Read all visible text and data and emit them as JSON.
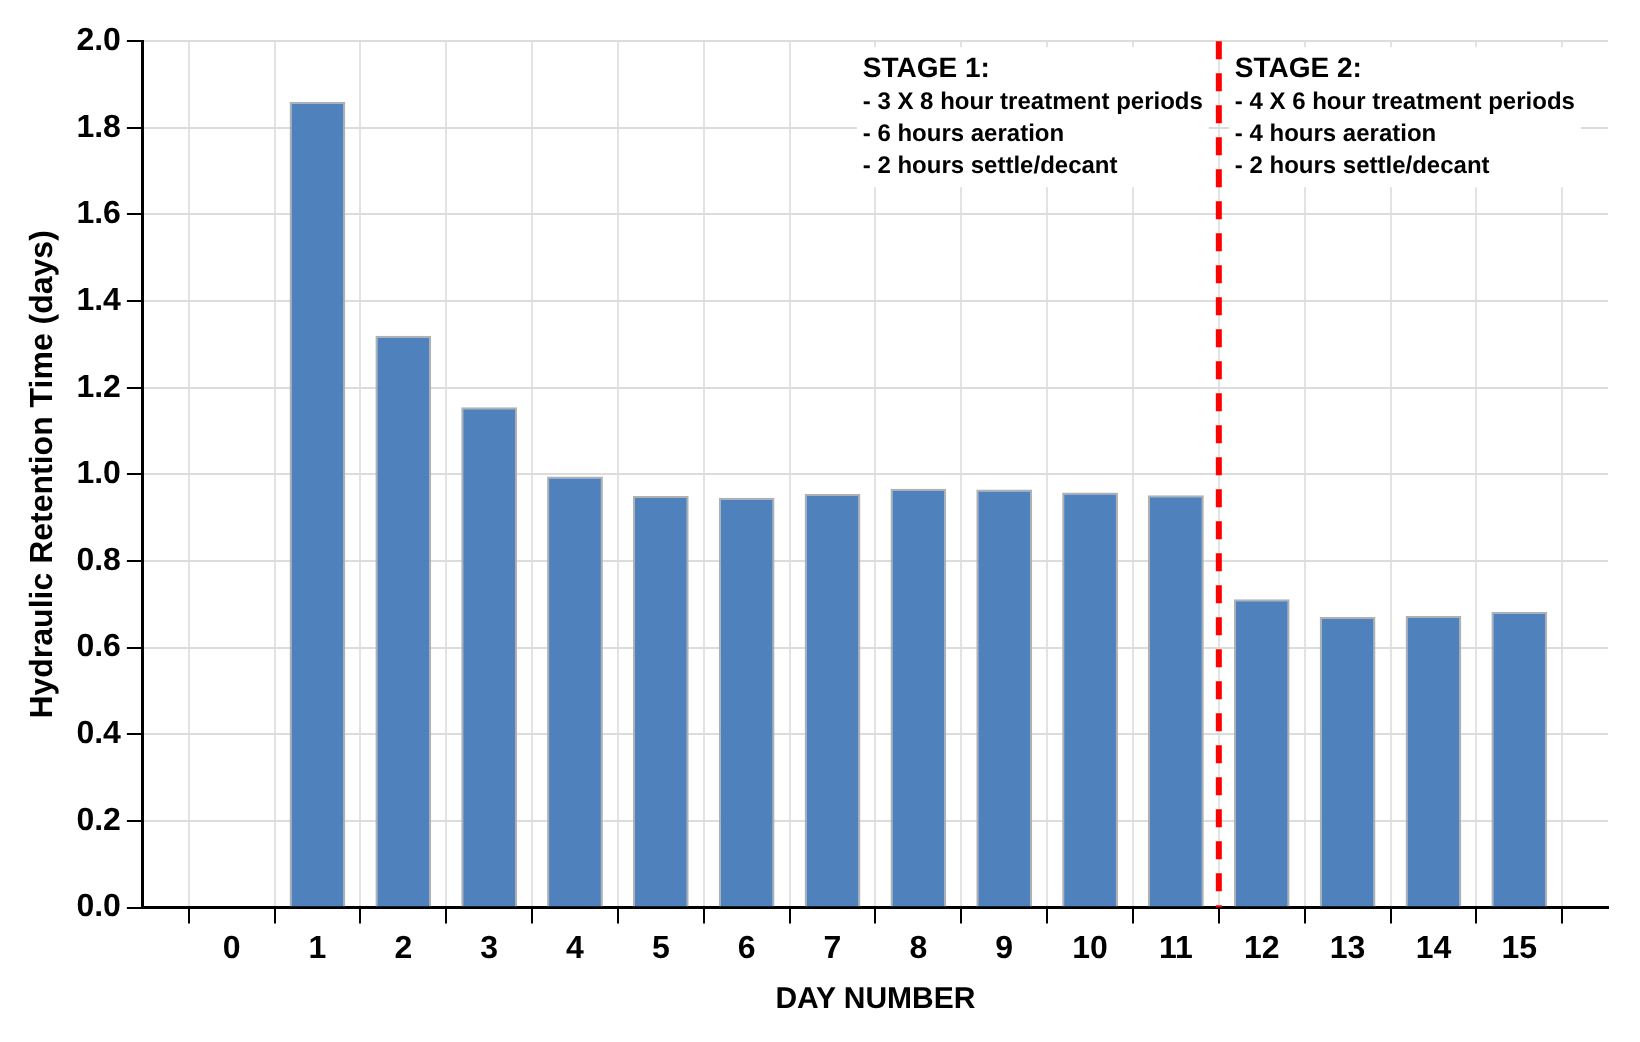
{
  "chart_data": {
    "type": "bar",
    "xlabel": "DAY NUMBER",
    "ylabel": "Hydraulic Retention Time (days)",
    "x": [
      1,
      2,
      3,
      4,
      5,
      6,
      7,
      8,
      9,
      10,
      11,
      12,
      13,
      14,
      15
    ],
    "values": [
      1.86,
      1.32,
      1.155,
      0.995,
      0.95,
      0.946,
      0.955,
      0.967,
      0.965,
      0.958,
      0.952,
      0.712,
      0.671,
      0.673,
      0.683
    ],
    "color": "#4f81bd",
    "xlim": [
      -0.5,
      15.5
    ],
    "xticks": [
      0,
      1,
      2,
      3,
      4,
      5,
      6,
      7,
      8,
      9,
      10,
      11,
      12,
      13,
      14,
      15
    ],
    "ylim": [
      0,
      2
    ],
    "yticks": [
      {
        "value": 0,
        "label": "0.0"
      },
      0.2,
      0.4,
      0.6,
      0.8,
      {
        "value": 1,
        "label": "1.0"
      },
      1.2,
      1.4,
      1.6,
      1.8,
      {
        "value": 2,
        "label": "2.0"
      }
    ],
    "ref_lines": [
      {
        "axis": "x",
        "value": 11.5,
        "color": "#ff0000",
        "line_style": "dashed"
      }
    ],
    "annotations": [
      "STAGE 1:\n- 3 X 8 hour treatment periods\n- 6 hours aeration\n- 2 hours settle/decant",
      "STAGE 2:\n- 4 X 6 hour treatment periods\n- 4 hours aeration\n- 2 hours settle/decant"
    ],
    "grid": true,
    "legend": false
  }
}
